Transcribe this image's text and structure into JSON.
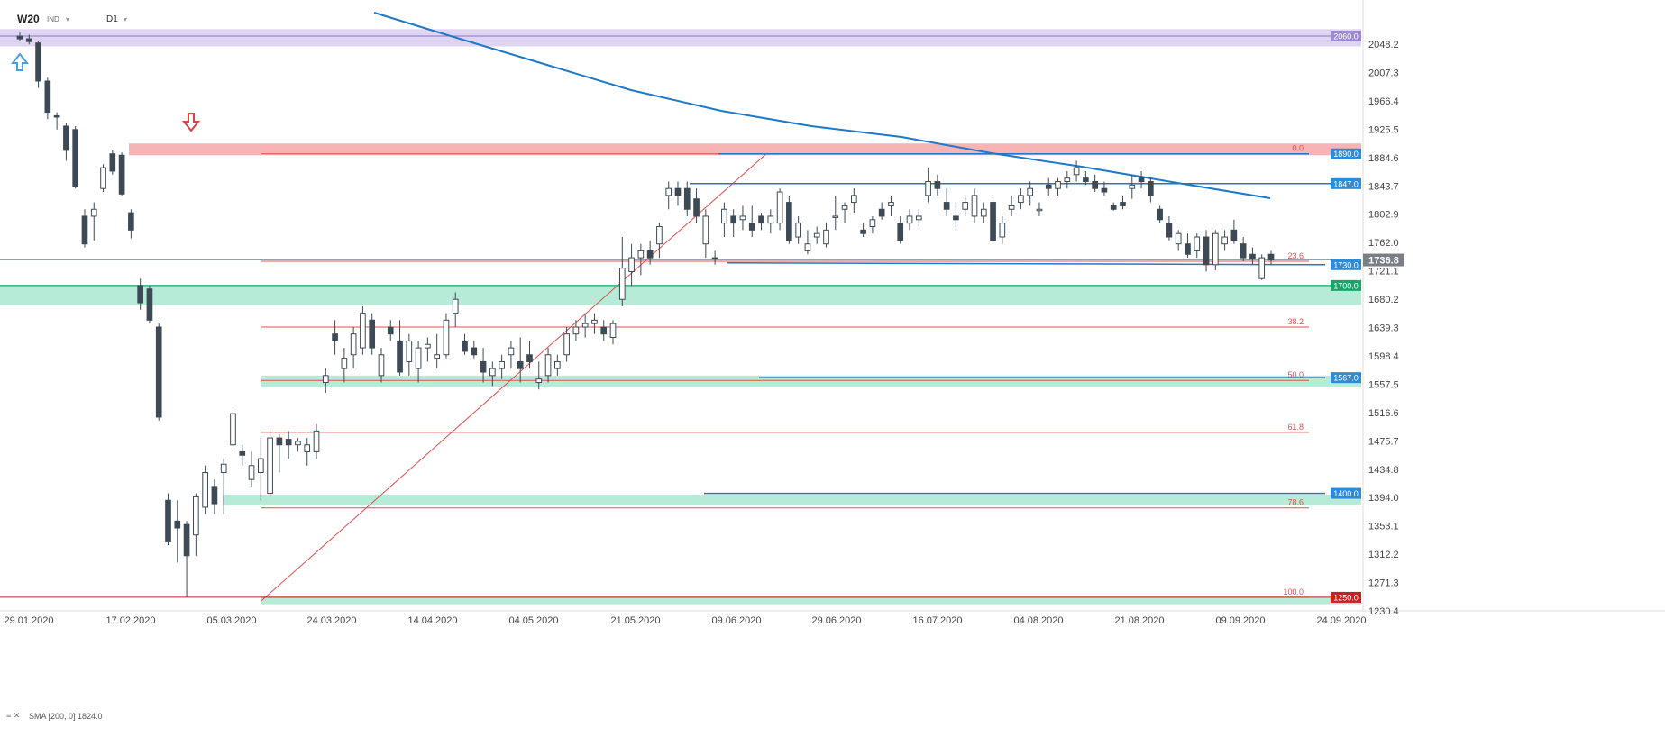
{
  "header": {
    "symbol": "W20",
    "sub": "IND",
    "timeframe": "D1"
  },
  "indicator": {
    "icons": "≡ ✕",
    "label": "SMA [200, 0] 1824.0"
  },
  "colors": {
    "bull_candle": "#ffffff",
    "bear_candle": "#3d4a55",
    "candle_outline": "#3d4a55",
    "sma_line": "#1f78c8",
    "fib_line": "#e05050",
    "trend_line": "#1f78c8",
    "green_zone": "#a8e8d0",
    "red_zone": "#f4a7a7",
    "purple_zone": "#d9cdf0",
    "label_blue": "#2d8bd8",
    "label_green": "#15a66a",
    "label_red": "#cc1f1f",
    "label_purple": "#9c87d4",
    "label_gray": "#7a7f86",
    "arrow_up": "#4a9fe0",
    "arrow_down": "#e04040"
  },
  "chart_data": {
    "type": "candlestick",
    "symbol": "W20",
    "timeframe": "D1",
    "y_axis": {
      "min": 1230.4,
      "max": 2060,
      "ticks": [
        "2048.2",
        "2007.3",
        "1966.4",
        "1925.5",
        "1884.6",
        "1843.7",
        "1802.9",
        "1762.0",
        "1721.1",
        "1680.2",
        "1639.3",
        "1598.4",
        "1557.5",
        "1516.6",
        "1475.7",
        "1434.8",
        "1394.0",
        "1353.1",
        "1312.2",
        "1271.3",
        "1230.4"
      ]
    },
    "x_axis": {
      "labels": [
        "29.01.2020",
        "17.02.2020",
        "05.03.2020",
        "24.03.2020",
        "14.04.2020",
        "04.05.2020",
        "21.05.2020",
        "09.06.2020",
        "29.06.2020",
        "16.07.2020",
        "04.08.2020",
        "21.08.2020",
        "09.09.2020",
        "24.09.2020"
      ]
    },
    "current_price": "1736.8",
    "levels": [
      {
        "label": "2060.0",
        "value": 2060.0,
        "style": "purple"
      },
      {
        "label": "1890.0",
        "value": 1890.0,
        "style": "blue"
      },
      {
        "label": "1847.0",
        "value": 1847.0,
        "style": "blue"
      },
      {
        "label": "1730.0",
        "value": 1730.0,
        "style": "blue"
      },
      {
        "label": "1700.0",
        "value": 1700.0,
        "style": "green"
      },
      {
        "label": "1567.0",
        "value": 1567.0,
        "style": "blue"
      },
      {
        "label": "1400.0",
        "value": 1400.0,
        "style": "blue"
      },
      {
        "label": "1250.0",
        "value": 1250.0,
        "style": "red"
      }
    ],
    "zones": [
      {
        "name": "purple",
        "from": 2045,
        "to": 2070
      },
      {
        "name": "red",
        "from": 1888,
        "to": 1905
      },
      {
        "name": "green",
        "from": 1672,
        "to": 1700
      },
      {
        "name": "green",
        "from": 1553,
        "to": 1570
      },
      {
        "name": "green",
        "from": 1383,
        "to": 1398
      },
      {
        "name": "green",
        "from": 1240,
        "to": 1250
      }
    ],
    "fibonacci": [
      {
        "label": "0.0",
        "value": 1890.0
      },
      {
        "label": "23.6",
        "value": 1735.0
      },
      {
        "label": "38.2",
        "value": 1640.0
      },
      {
        "label": "50.0",
        "value": 1563.0
      },
      {
        "label": "61.8",
        "value": 1488.0
      },
      {
        "label": "78.6",
        "value": 1379.0
      },
      {
        "label": "100.0",
        "value": 1250.0
      }
    ],
    "sma": {
      "name": "SMA [200, 0]",
      "value": 1824.0
    },
    "candles": [
      [
        2060,
        2065,
        2052,
        2056
      ],
      [
        2056,
        2062,
        2048,
        2052
      ],
      [
        2050,
        2052,
        1985,
        1995
      ],
      [
        1995,
        2000,
        1940,
        1950
      ],
      [
        1945,
        1950,
        1925,
        1943
      ],
      [
        1930,
        1935,
        1880,
        1895
      ],
      [
        1925,
        1930,
        1840,
        1843
      ],
      [
        1800,
        1810,
        1755,
        1760
      ],
      [
        1800,
        1820,
        1765,
        1810
      ],
      [
        1840,
        1875,
        1835,
        1870
      ],
      [
        1890,
        1895,
        1860,
        1865
      ],
      [
        1888,
        1892,
        1830,
        1832
      ],
      [
        1805,
        1810,
        1768,
        1780
      ],
      [
        1700,
        1710,
        1665,
        1675
      ],
      [
        1695,
        1700,
        1645,
        1650
      ],
      [
        1640,
        1645,
        1505,
        1510
      ],
      [
        1390,
        1400,
        1325,
        1330
      ],
      [
        1360,
        1390,
        1300,
        1350
      ],
      [
        1355,
        1360,
        1250,
        1310
      ],
      [
        1340,
        1400,
        1310,
        1395
      ],
      [
        1380,
        1440,
        1370,
        1430
      ],
      [
        1410,
        1420,
        1370,
        1385
      ],
      [
        1430,
        1450,
        1370,
        1442
      ],
      [
        1470,
        1520,
        1460,
        1515
      ],
      [
        1460,
        1470,
        1440,
        1455
      ],
      [
        1420,
        1460,
        1410,
        1440
      ],
      [
        1430,
        1480,
        1390,
        1450
      ],
      [
        1400,
        1490,
        1395,
        1480
      ],
      [
        1480,
        1485,
        1430,
        1470
      ],
      [
        1478,
        1490,
        1450,
        1470
      ],
      [
        1470,
        1480,
        1460,
        1475
      ],
      [
        1460,
        1480,
        1440,
        1470
      ],
      [
        1460,
        1500,
        1450,
        1490
      ],
      [
        1560,
        1580,
        1545,
        1570
      ],
      [
        1630,
        1650,
        1600,
        1620
      ],
      [
        1580,
        1610,
        1560,
        1595
      ],
      [
        1600,
        1640,
        1580,
        1630
      ],
      [
        1610,
        1670,
        1600,
        1660
      ],
      [
        1650,
        1660,
        1600,
        1610
      ],
      [
        1570,
        1610,
        1560,
        1600
      ],
      [
        1640,
        1650,
        1620,
        1630
      ],
      [
        1620,
        1650,
        1570,
        1575
      ],
      [
        1590,
        1630,
        1570,
        1620
      ],
      [
        1580,
        1620,
        1560,
        1610
      ],
      [
        1610,
        1625,
        1590,
        1615
      ],
      [
        1595,
        1630,
        1580,
        1600
      ],
      [
        1600,
        1660,
        1595,
        1650
      ],
      [
        1660,
        1690,
        1640,
        1680
      ],
      [
        1620,
        1630,
        1600,
        1605
      ],
      [
        1610,
        1620,
        1595,
        1600
      ],
      [
        1590,
        1610,
        1560,
        1575
      ],
      [
        1570,
        1590,
        1555,
        1580
      ],
      [
        1580,
        1600,
        1565,
        1590
      ],
      [
        1600,
        1620,
        1580,
        1610
      ],
      [
        1590,
        1625,
        1560,
        1580
      ],
      [
        1600,
        1620,
        1580,
        1590
      ],
      [
        1560,
        1590,
        1550,
        1565
      ],
      [
        1570,
        1610,
        1560,
        1600
      ],
      [
        1580,
        1600,
        1570,
        1590
      ],
      [
        1600,
        1640,
        1590,
        1630
      ],
      [
        1630,
        1650,
        1620,
        1640
      ],
      [
        1640,
        1660,
        1625,
        1645
      ],
      [
        1645,
        1660,
        1630,
        1650
      ],
      [
        1640,
        1650,
        1620,
        1630
      ],
      [
        1625,
        1650,
        1615,
        1645
      ],
      [
        1680,
        1770,
        1670,
        1725
      ],
      [
        1720,
        1760,
        1700,
        1740
      ],
      [
        1740,
        1760,
        1715,
        1750
      ],
      [
        1750,
        1765,
        1730,
        1740
      ],
      [
        1760,
        1790,
        1740,
        1785
      ],
      [
        1830,
        1850,
        1810,
        1840
      ],
      [
        1840,
        1850,
        1815,
        1830
      ],
      [
        1840,
        1850,
        1800,
        1810
      ],
      [
        1825,
        1840,
        1790,
        1800
      ],
      [
        1760,
        1810,
        1740,
        1800
      ],
      [
        1740,
        1750,
        1730,
        1738
      ],
      [
        1790,
        1820,
        1770,
        1810
      ],
      [
        1800,
        1810,
        1770,
        1790
      ],
      [
        1795,
        1815,
        1780,
        1800
      ],
      [
        1790,
        1815,
        1770,
        1780
      ],
      [
        1800,
        1805,
        1780,
        1790
      ],
      [
        1790,
        1810,
        1775,
        1800
      ],
      [
        1790,
        1840,
        1780,
        1835
      ],
      [
        1820,
        1830,
        1760,
        1765
      ],
      [
        1770,
        1800,
        1760,
        1790
      ],
      [
        1750,
        1780,
        1745,
        1760
      ],
      [
        1770,
        1785,
        1760,
        1775
      ],
      [
        1760,
        1790,
        1755,
        1780
      ],
      [
        1800,
        1830,
        1780,
        1800
      ],
      [
        1810,
        1820,
        1790,
        1815
      ],
      [
        1820,
        1840,
        1805,
        1830
      ],
      [
        1780,
        1790,
        1770,
        1775
      ],
      [
        1785,
        1800,
        1775,
        1795
      ],
      [
        1810,
        1820,
        1795,
        1800
      ],
      [
        1815,
        1830,
        1800,
        1820
      ],
      [
        1790,
        1800,
        1760,
        1765
      ],
      [
        1790,
        1810,
        1780,
        1800
      ],
      [
        1795,
        1810,
        1785,
        1800
      ],
      [
        1830,
        1870,
        1820,
        1850
      ],
      [
        1850,
        1860,
        1830,
        1840
      ],
      [
        1820,
        1840,
        1800,
        1810
      ],
      [
        1800,
        1820,
        1780,
        1795
      ],
      [
        1810,
        1830,
        1800,
        1820
      ],
      [
        1800,
        1840,
        1790,
        1830
      ],
      [
        1800,
        1820,
        1790,
        1810
      ],
      [
        1820,
        1830,
        1760,
        1765
      ],
      [
        1770,
        1800,
        1760,
        1790
      ],
      [
        1810,
        1830,
        1800,
        1815
      ],
      [
        1820,
        1840,
        1810,
        1830
      ],
      [
        1830,
        1850,
        1815,
        1840
      ],
      [
        1810,
        1820,
        1800,
        1810
      ],
      [
        1845,
        1855,
        1830,
        1840
      ],
      [
        1840,
        1855,
        1830,
        1850
      ],
      [
        1850,
        1865,
        1840,
        1855
      ],
      [
        1860,
        1880,
        1850,
        1870
      ],
      [
        1855,
        1865,
        1845,
        1850
      ],
      [
        1850,
        1860,
        1835,
        1840
      ],
      [
        1840,
        1850,
        1830,
        1835
      ],
      [
        1815,
        1820,
        1808,
        1810
      ],
      [
        1820,
        1830,
        1810,
        1815
      ],
      [
        1840,
        1860,
        1825,
        1845
      ],
      [
        1855,
        1865,
        1840,
        1850
      ],
      [
        1850,
        1855,
        1820,
        1830
      ],
      [
        1810,
        1815,
        1790,
        1795
      ],
      [
        1790,
        1800,
        1765,
        1770
      ],
      [
        1760,
        1780,
        1750,
        1775
      ],
      [
        1760,
        1775,
        1740,
        1745
      ],
      [
        1750,
        1775,
        1740,
        1770
      ],
      [
        1770,
        1780,
        1720,
        1730
      ],
      [
        1730,
        1780,
        1722,
        1775
      ],
      [
        1760,
        1780,
        1750,
        1770
      ],
      [
        1780,
        1795,
        1760,
        1765
      ],
      [
        1760,
        1770,
        1735,
        1740
      ],
      [
        1745,
        1755,
        1730,
        1738
      ],
      [
        1710,
        1745,
        1708,
        1740
      ],
      [
        1745,
        1750,
        1730,
        1736.8
      ]
    ]
  }
}
